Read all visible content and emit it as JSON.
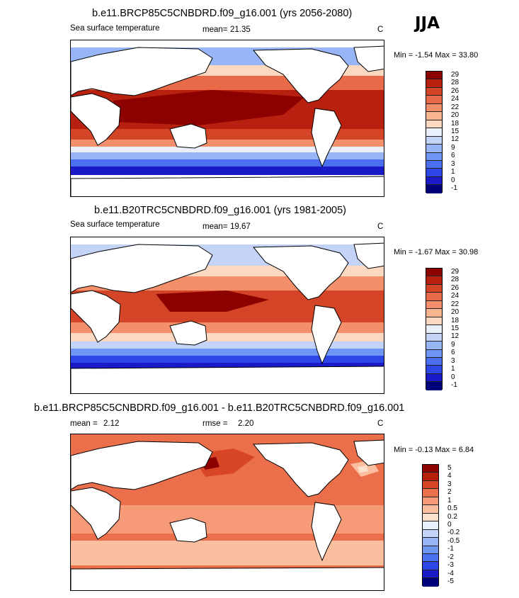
{
  "season": "JJA",
  "colors": {
    "sst_scale": [
      "#00007a",
      "#1a1ac8",
      "#2e46e6",
      "#4a6ff0",
      "#6f96f5",
      "#98b6f7",
      "#c3d4f8",
      "#eaf0fb",
      "#fdd8c0",
      "#f9b490",
      "#f38f6a",
      "#e86a48",
      "#d44427",
      "#b8200f",
      "#8c0000"
    ],
    "diff_scale": [
      "#00007a",
      "#1a1ac8",
      "#2e46e6",
      "#4a6ff0",
      "#6f96f5",
      "#98b6f7",
      "#c3d4f8",
      "#eaf0fb",
      "#fde1cf",
      "#fbbf9f",
      "#f69a77",
      "#ea6f4a",
      "#d94626",
      "#b51f0c",
      "#8c0000"
    ],
    "land": "#ffffff",
    "coast": "#000000"
  },
  "panels": [
    {
      "title": "b.e11.BRCP85C5CNBDRD.f09_g16.001 (yrs 2056-2080)",
      "left_label": "Sea surface temperature",
      "stat_label": "mean=",
      "stat_value": "21.35",
      "units": "C",
      "min_max": "Min = -1.54 Max = 33.80",
      "colorbar_labels": [
        "29",
        "28",
        "26",
        "24",
        "22",
        "20",
        "18",
        "15",
        "12",
        "9",
        "6",
        "3",
        "1",
        "0",
        "-1"
      ],
      "mean_value": 21.35,
      "min_value": -1.54,
      "max_value": 33.8
    },
    {
      "title": "b.e11.B20TRC5CNBDRD.f09_g16.001 (yrs 1981-2005)",
      "left_label": "Sea surface temperature",
      "stat_label": "mean=",
      "stat_value": "19.67",
      "units": "C",
      "min_max": "Min = -1.67 Max = 30.98",
      "colorbar_labels": [
        "29",
        "28",
        "26",
        "24",
        "22",
        "20",
        "18",
        "15",
        "12",
        "9",
        "6",
        "3",
        "1",
        "0",
        "-1"
      ],
      "mean_value": 19.67,
      "min_value": -1.67,
      "max_value": 30.98
    },
    {
      "title": "b.e11.BRCP85C5CNBDRD.f09_g16.001 - b.e11.B20TRC5CNBDRD.f09_g16.001",
      "left_label": "mean =",
      "left_value": "2.12",
      "stat_label": "rmse =",
      "stat_value": "2.20",
      "units": "C",
      "min_max": "Min = -0.13 Max = 6.84",
      "colorbar_labels": [
        "5",
        "4",
        "3",
        "2",
        "1",
        "0.5",
        "0.2",
        "0",
        "-0.2",
        "-0.5",
        "-1",
        "-2",
        "-3",
        "-4",
        "-5"
      ],
      "mean_value": 2.12,
      "rmse_value": 2.2,
      "min_value": -0.13,
      "max_value": 6.84
    }
  ]
}
